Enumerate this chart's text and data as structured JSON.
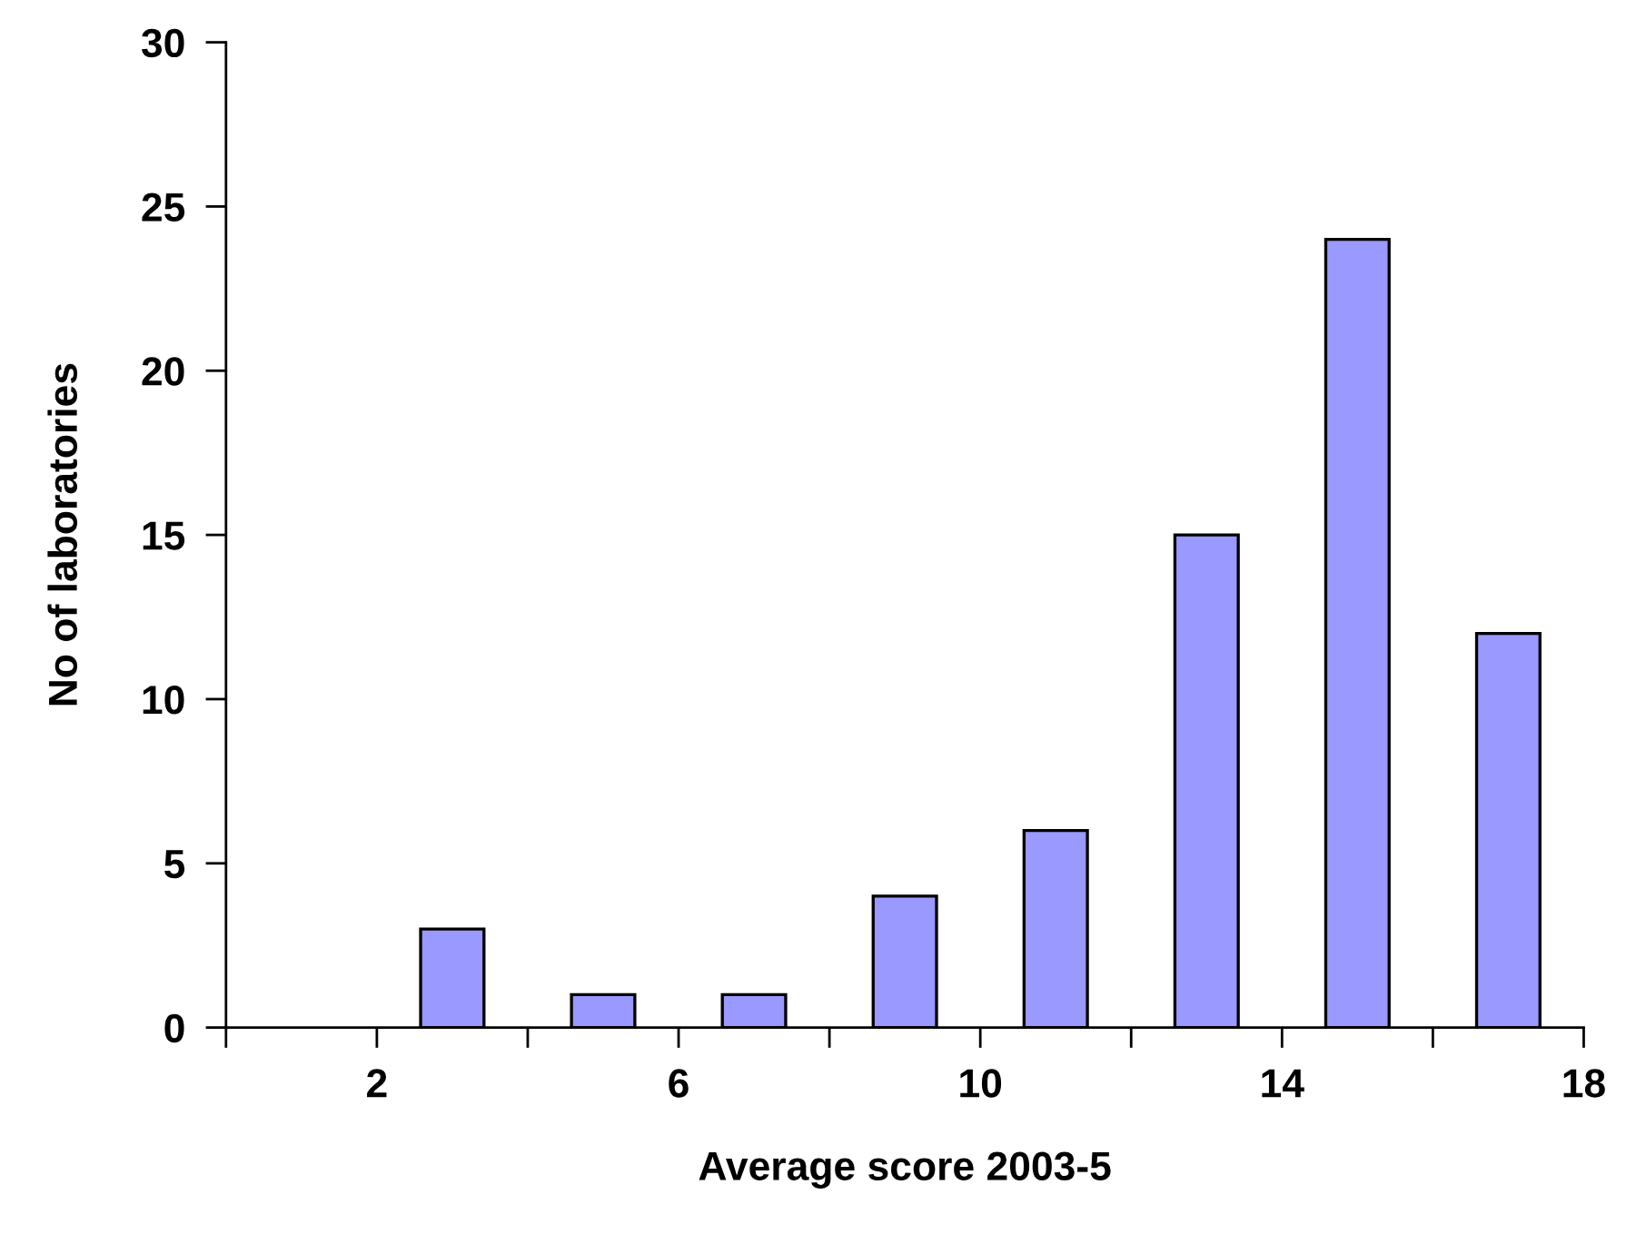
{
  "chart_data": {
    "type": "histogram",
    "xlabel": "Average score 2003-5",
    "ylabel": "No of laboratories",
    "bins": [
      0,
      2,
      4,
      6,
      8,
      10,
      12,
      14,
      16,
      18
    ],
    "values": [
      0,
      3,
      1,
      1,
      4,
      6,
      15,
      24,
      12
    ],
    "color": "#9999ff",
    "xlim": [
      0,
      18
    ],
    "xticks": [
      {
        "value": 0,
        "label": null
      },
      2,
      {
        "value": 4,
        "label": null
      },
      6,
      {
        "value": 8,
        "label": null
      },
      10,
      {
        "value": 12,
        "label": null
      },
      14,
      {
        "value": 16,
        "label": null
      },
      18
    ],
    "ylim": [
      0,
      30
    ],
    "yticks": [
      0,
      5,
      10,
      15,
      20,
      25,
      30
    ],
    "grid": false,
    "legend": false
  }
}
